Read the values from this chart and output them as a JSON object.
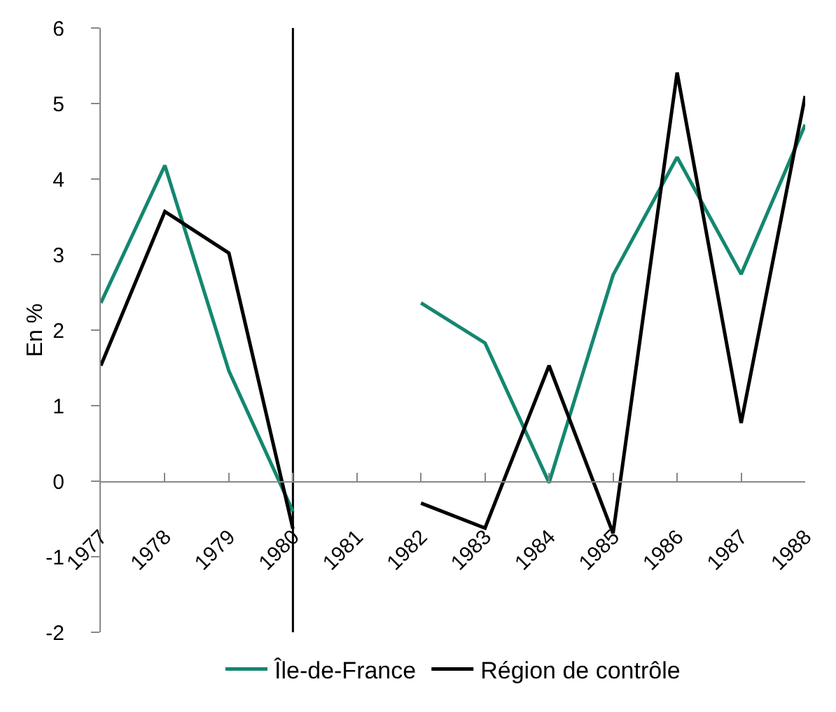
{
  "chart_data": {
    "type": "line",
    "ylabel": "En %",
    "x": [
      1977,
      1978,
      1979,
      1980,
      1981,
      1982,
      1983,
      1984,
      1985,
      1986,
      1987,
      1988
    ],
    "series": [
      {
        "name": "Île-de-France",
        "color": "#14876f",
        "values": [
          2.36,
          4.18,
          1.46,
          -0.4,
          null,
          2.36,
          1.83,
          -0.02,
          2.73,
          4.29,
          2.74,
          4.72
        ]
      },
      {
        "name": "Région de contrôle",
        "color": "#000000",
        "values": [
          1.53,
          3.57,
          3.02,
          -0.63,
          null,
          -0.29,
          -0.62,
          1.53,
          -0.69,
          5.41,
          0.77,
          5.1
        ]
      }
    ],
    "xlim": [
      1977,
      1988
    ],
    "xticks": [
      1977,
      1978,
      1979,
      1980,
      1981,
      1982,
      1983,
      1984,
      1985,
      1986,
      1987,
      1988
    ],
    "ylim": [
      -2,
      6
    ],
    "yticks": [
      -2,
      -1,
      0,
      1,
      2,
      3,
      4,
      5,
      6
    ],
    "ref_lines": [
      {
        "axis": "x",
        "value": 1980,
        "color": "#000000"
      }
    ],
    "grid": false,
    "legend": "bottom",
    "marker": "none",
    "line_style": "solid"
  }
}
